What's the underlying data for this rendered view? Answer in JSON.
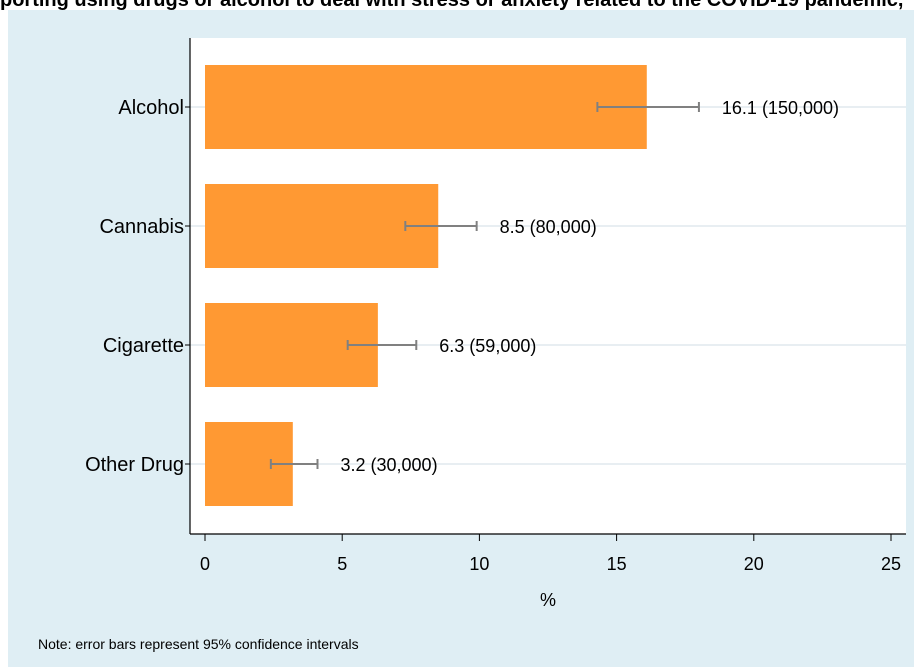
{
  "chart_data": {
    "type": "bar",
    "orientation": "horizontal",
    "title": "porting using drugs or alcohol to deal with stress or anxiety related to the COVID-19 pandemic,",
    "categories": [
      "Alcohol",
      "Cannabis",
      "Cigarette",
      "Other Drug"
    ],
    "values": [
      16.1,
      8.5,
      6.3,
      3.2
    ],
    "ci_low": [
      14.3,
      7.3,
      5.2,
      2.4
    ],
    "ci_high": [
      18.0,
      9.9,
      7.7,
      4.1
    ],
    "data_labels": [
      "16.1 (150,000)",
      "8.5 (80,000)",
      "6.3 (59,000)",
      "3.2 (30,000)"
    ],
    "xlabel": "%",
    "ylabel": "",
    "xlim": [
      0,
      25
    ],
    "xticks": [
      0,
      5,
      10,
      15,
      20,
      25
    ],
    "grid": true,
    "bar_color": "#ff9933",
    "error_bar_color": "#808080",
    "background_color": "#dfeef4",
    "plot_background_color": "#ffffff",
    "note": "Note: error bars represent 95% confidence intervals"
  }
}
